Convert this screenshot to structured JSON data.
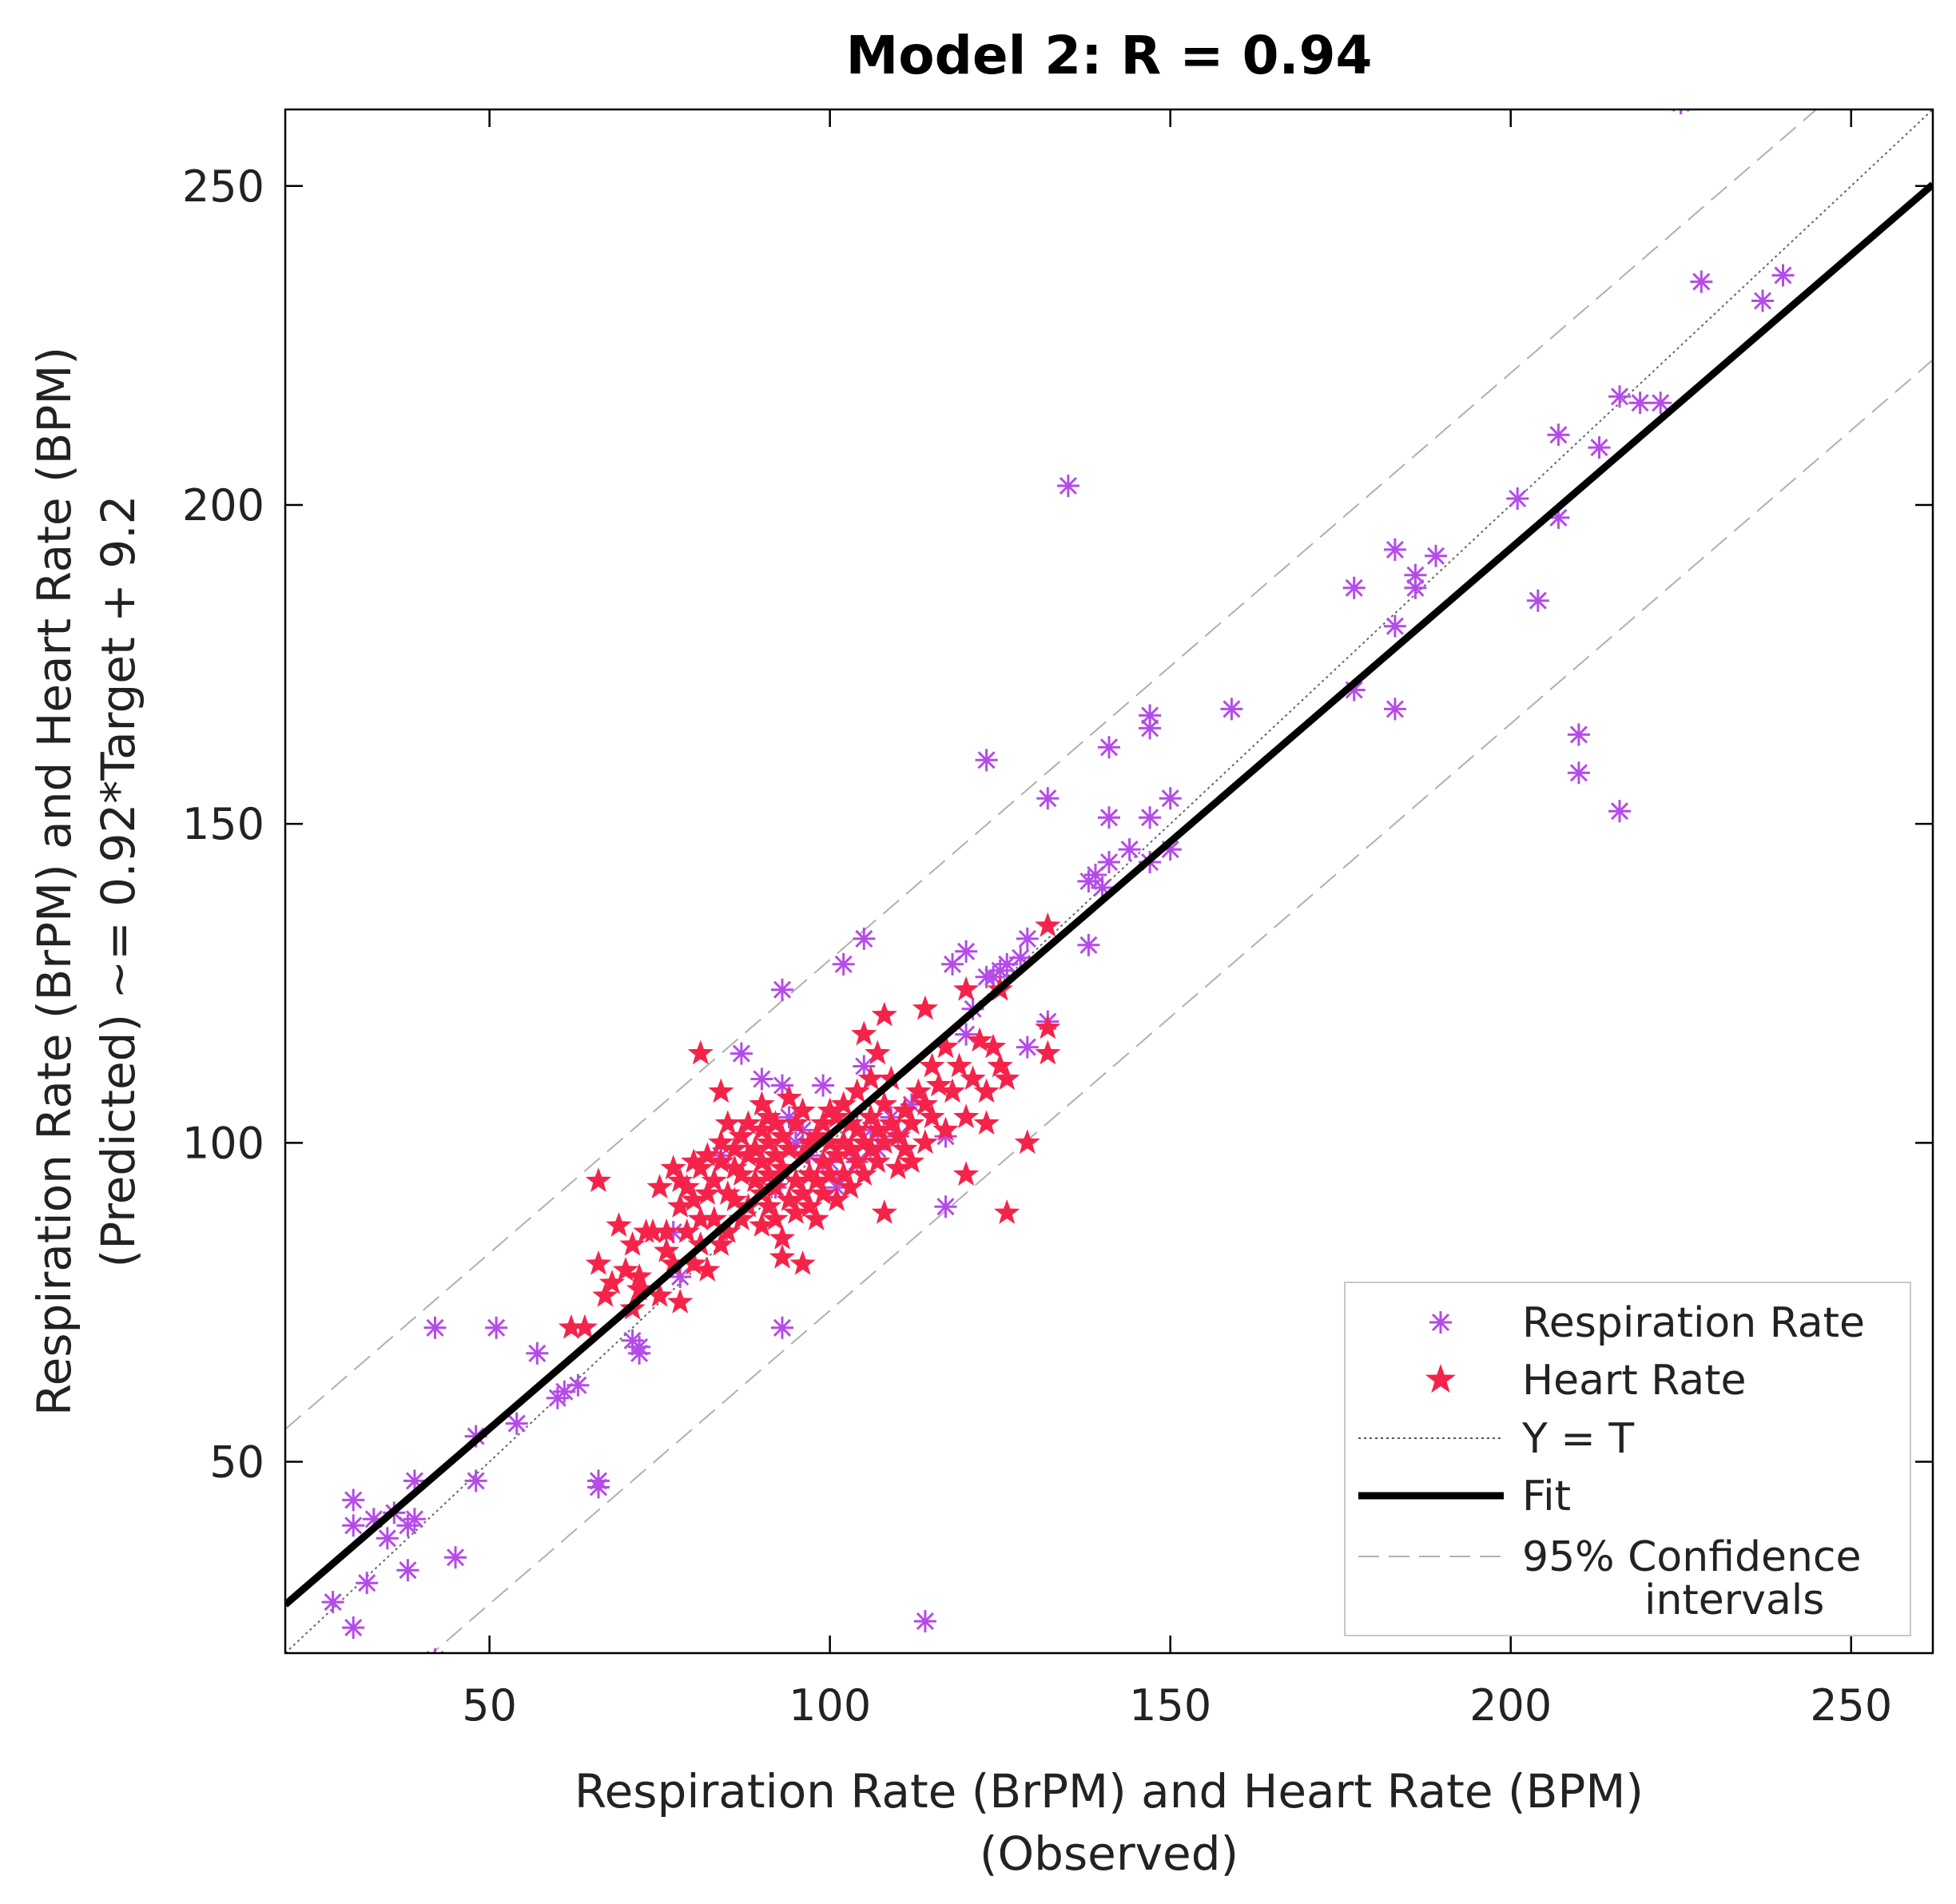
{
  "chart_data": {
    "type": "scatter",
    "title": "Model 2: R = 0.94",
    "xlabel_line1": "Respiration Rate (BrPM) and Heart Rate (BPM)",
    "xlabel_line2": "(Observed)",
    "ylabel_line1": "Respiration Rate (BrPM) and Heart Rate (BPM)",
    "ylabel_line2": "(Predicted) ~= 0.92*Target + 9.2",
    "xlim": [
      20,
      262
    ],
    "ylim": [
      20,
      262
    ],
    "xticks": [
      50,
      100,
      150,
      200,
      250
    ],
    "yticks": [
      50,
      100,
      150,
      200,
      250
    ],
    "xtick_labels": [
      "50",
      "100",
      "150",
      "200",
      "250"
    ],
    "ytick_labels": [
      "50",
      "100",
      "150",
      "200",
      "250"
    ],
    "grid": false,
    "legend_position": "bottom-right",
    "legend": {
      "respiration": "Respiration Rate",
      "heart": "Heart Rate",
      "identity": "Y = T",
      "fit": "Fit",
      "ci_line1": "95% Confidence",
      "ci_line2": "intervals"
    },
    "fit": {
      "slope": 0.92,
      "intercept": 9.2,
      "color": "#000000"
    },
    "identity_line": {
      "slope": 1,
      "intercept": 0,
      "color": "#666666"
    },
    "confidence_band": {
      "offset": 27.5,
      "color": "#b0b0b0"
    },
    "series": [
      {
        "name": "Respiration Rate",
        "marker": "asterisk",
        "color": "#b44be8",
        "points": [
          [
            27,
            28
          ],
          [
            30,
            24
          ],
          [
            30,
            40
          ],
          [
            30,
            44
          ],
          [
            32,
            31
          ],
          [
            33,
            41
          ],
          [
            35,
            38
          ],
          [
            36,
            42
          ],
          [
            38,
            33
          ],
          [
            38,
            40
          ],
          [
            39,
            47
          ],
          [
            39,
            41
          ],
          [
            42,
            19
          ],
          [
            42,
            71
          ],
          [
            45,
            35
          ],
          [
            48,
            47
          ],
          [
            48,
            54
          ],
          [
            51,
            71
          ],
          [
            54,
            56
          ],
          [
            57,
            67
          ],
          [
            60,
            60
          ],
          [
            61,
            61
          ],
          [
            63,
            62
          ],
          [
            66,
            46
          ],
          [
            66,
            47
          ],
          [
            71,
            69
          ],
          [
            72,
            67
          ],
          [
            72,
            68
          ],
          [
            77,
            86
          ],
          [
            78,
            79
          ],
          [
            84,
            98
          ],
          [
            87,
            114
          ],
          [
            90,
            110
          ],
          [
            92,
            93
          ],
          [
            93,
            109
          ],
          [
            93,
            124
          ],
          [
            93,
            71
          ],
          [
            94,
            104
          ],
          [
            95,
            100
          ],
          [
            96,
            102
          ],
          [
            97,
            98
          ],
          [
            99,
            109
          ],
          [
            100,
            97
          ],
          [
            101,
            93
          ],
          [
            102,
            128
          ],
          [
            104,
            97
          ],
          [
            105,
            112
          ],
          [
            105,
            132
          ],
          [
            106,
            102
          ],
          [
            107,
            99
          ],
          [
            109,
            104
          ],
          [
            110,
            101
          ],
          [
            112,
            106
          ],
          [
            114,
            25
          ],
          [
            117,
            101
          ],
          [
            117,
            90
          ],
          [
            118,
            128
          ],
          [
            120,
            130
          ],
          [
            120,
            117
          ],
          [
            121,
            121
          ],
          [
            123,
            160
          ],
          [
            123,
            126
          ],
          [
            124,
            126
          ],
          [
            125,
            127
          ],
          [
            126,
            128
          ],
          [
            128,
            129
          ],
          [
            129,
            132
          ],
          [
            129,
            115
          ],
          [
            132,
            119
          ],
          [
            132,
            154
          ],
          [
            135,
            203
          ],
          [
            138,
            141
          ],
          [
            138,
            131
          ],
          [
            139,
            142
          ],
          [
            140,
            140
          ],
          [
            141,
            151
          ],
          [
            141,
            162
          ],
          [
            141,
            144
          ],
          [
            144,
            146
          ],
          [
            147,
            144
          ],
          [
            147,
            151
          ],
          [
            147,
            165
          ],
          [
            147,
            167
          ],
          [
            150,
            146
          ],
          [
            150,
            154
          ],
          [
            159,
            168
          ],
          [
            177,
            187
          ],
          [
            177,
            171
          ],
          [
            183,
            193
          ],
          [
            183,
            181
          ],
          [
            183,
            168
          ],
          [
            186,
            189
          ],
          [
            186,
            187
          ],
          [
            189,
            192
          ],
          [
            201,
            201
          ],
          [
            204,
            185
          ],
          [
            207,
            198
          ],
          [
            207,
            211
          ],
          [
            210,
            164
          ],
          [
            210,
            158
          ],
          [
            213,
            209
          ],
          [
            216,
            152
          ],
          [
            216,
            217
          ],
          [
            219,
            216
          ],
          [
            222,
            216
          ],
          [
            225,
            263
          ],
          [
            228,
            235
          ],
          [
            237,
            232
          ],
          [
            240,
            236
          ]
        ]
      },
      {
        "name": "Heart Rate",
        "marker": "star",
        "color": "#f5234a",
        "points": [
          [
            62,
            71
          ],
          [
            64,
            71
          ],
          [
            66,
            81
          ],
          [
            66,
            94
          ],
          [
            67,
            76
          ],
          [
            68,
            78
          ],
          [
            69,
            87
          ],
          [
            70,
            80
          ],
          [
            71,
            74
          ],
          [
            71,
            84
          ],
          [
            72,
            77
          ],
          [
            72,
            79
          ],
          [
            73,
            86
          ],
          [
            74,
            86
          ],
          [
            75,
            76
          ],
          [
            75,
            93
          ],
          [
            76,
            83
          ],
          [
            76,
            86
          ],
          [
            77,
            81
          ],
          [
            77,
            96
          ],
          [
            78,
            75
          ],
          [
            78,
            90
          ],
          [
            78,
            94
          ],
          [
            79,
            86
          ],
          [
            79,
            93
          ],
          [
            80,
            91
          ],
          [
            80,
            97
          ],
          [
            80,
            81
          ],
          [
            81,
            84
          ],
          [
            81,
            88
          ],
          [
            81,
            96
          ],
          [
            81,
            114
          ],
          [
            82,
            80
          ],
          [
            82,
            92
          ],
          [
            82,
            98
          ],
          [
            83,
            88
          ],
          [
            83,
            94
          ],
          [
            84,
            84
          ],
          [
            84,
            97
          ],
          [
            84,
            100
          ],
          [
            84,
            108
          ],
          [
            85,
            86
          ],
          [
            85,
            92
          ],
          [
            85,
            103
          ],
          [
            86,
            91
          ],
          [
            86,
            96
          ],
          [
            86,
            99
          ],
          [
            87,
            88
          ],
          [
            87,
            95
          ],
          [
            87,
            101
          ],
          [
            88,
            90
          ],
          [
            88,
            98
          ],
          [
            88,
            103
          ],
          [
            89,
            94
          ],
          [
            89,
            99
          ],
          [
            90,
            87
          ],
          [
            90,
            92
          ],
          [
            90,
            97
          ],
          [
            90,
            102
          ],
          [
            90,
            106
          ],
          [
            91,
            90
          ],
          [
            91,
            95
          ],
          [
            91,
            100
          ],
          [
            91,
            104
          ],
          [
            92,
            88
          ],
          [
            92,
            93
          ],
          [
            92,
            98
          ],
          [
            92,
            103
          ],
          [
            93,
            82
          ],
          [
            93,
            85
          ],
          [
            93,
            96
          ],
          [
            93,
            101
          ],
          [
            94,
            91
          ],
          [
            94,
            99
          ],
          [
            94,
            107
          ],
          [
            95,
            89
          ],
          [
            95,
            94
          ],
          [
            95,
            103
          ],
          [
            96,
            81
          ],
          [
            96,
            92
          ],
          [
            96,
            98
          ],
          [
            96,
            105
          ],
          [
            97,
            90
          ],
          [
            97,
            95
          ],
          [
            97,
            100
          ],
          [
            98,
            88
          ],
          [
            98,
            94
          ],
          [
            98,
            101
          ],
          [
            99,
            92
          ],
          [
            99,
            97
          ],
          [
            99,
            103
          ],
          [
            100,
            95
          ],
          [
            100,
            100
          ],
          [
            100,
            105
          ],
          [
            101,
            91
          ],
          [
            101,
            98
          ],
          [
            101,
            104
          ],
          [
            102,
            95
          ],
          [
            102,
            100
          ],
          [
            102,
            106
          ],
          [
            103,
            93
          ],
          [
            103,
            99
          ],
          [
            103,
            103
          ],
          [
            104,
            97
          ],
          [
            104,
            102
          ],
          [
            104,
            108
          ],
          [
            105,
            95
          ],
          [
            105,
            100
          ],
          [
            105,
            117
          ],
          [
            106,
            99
          ],
          [
            106,
            104
          ],
          [
            106,
            110
          ],
          [
            107,
            97
          ],
          [
            107,
            102
          ],
          [
            107,
            114
          ],
          [
            108,
            89
          ],
          [
            108,
            100
          ],
          [
            108,
            106
          ],
          [
            108,
            120
          ],
          [
            109,
            103
          ],
          [
            109,
            110
          ],
          [
            110,
            96
          ],
          [
            110,
            101
          ],
          [
            111,
            99
          ],
          [
            111,
            105
          ],
          [
            112,
            97
          ],
          [
            112,
            103
          ],
          [
            113,
            108
          ],
          [
            114,
            100
          ],
          [
            114,
            106
          ],
          [
            114,
            121
          ],
          [
            115,
            104
          ],
          [
            115,
            112
          ],
          [
            116,
            109
          ],
          [
            117,
            102
          ],
          [
            117,
            115
          ],
          [
            118,
            108
          ],
          [
            119,
            112
          ],
          [
            120,
            95
          ],
          [
            120,
            104
          ],
          [
            120,
            124
          ],
          [
            121,
            110
          ],
          [
            122,
            116
          ],
          [
            123,
            103
          ],
          [
            123,
            108
          ],
          [
            124,
            115
          ],
          [
            125,
            112
          ],
          [
            125,
            124
          ],
          [
            126,
            89
          ],
          [
            126,
            110
          ],
          [
            129,
            100
          ],
          [
            132,
            114
          ],
          [
            132,
            118
          ],
          [
            132,
            134
          ]
        ]
      }
    ]
  }
}
